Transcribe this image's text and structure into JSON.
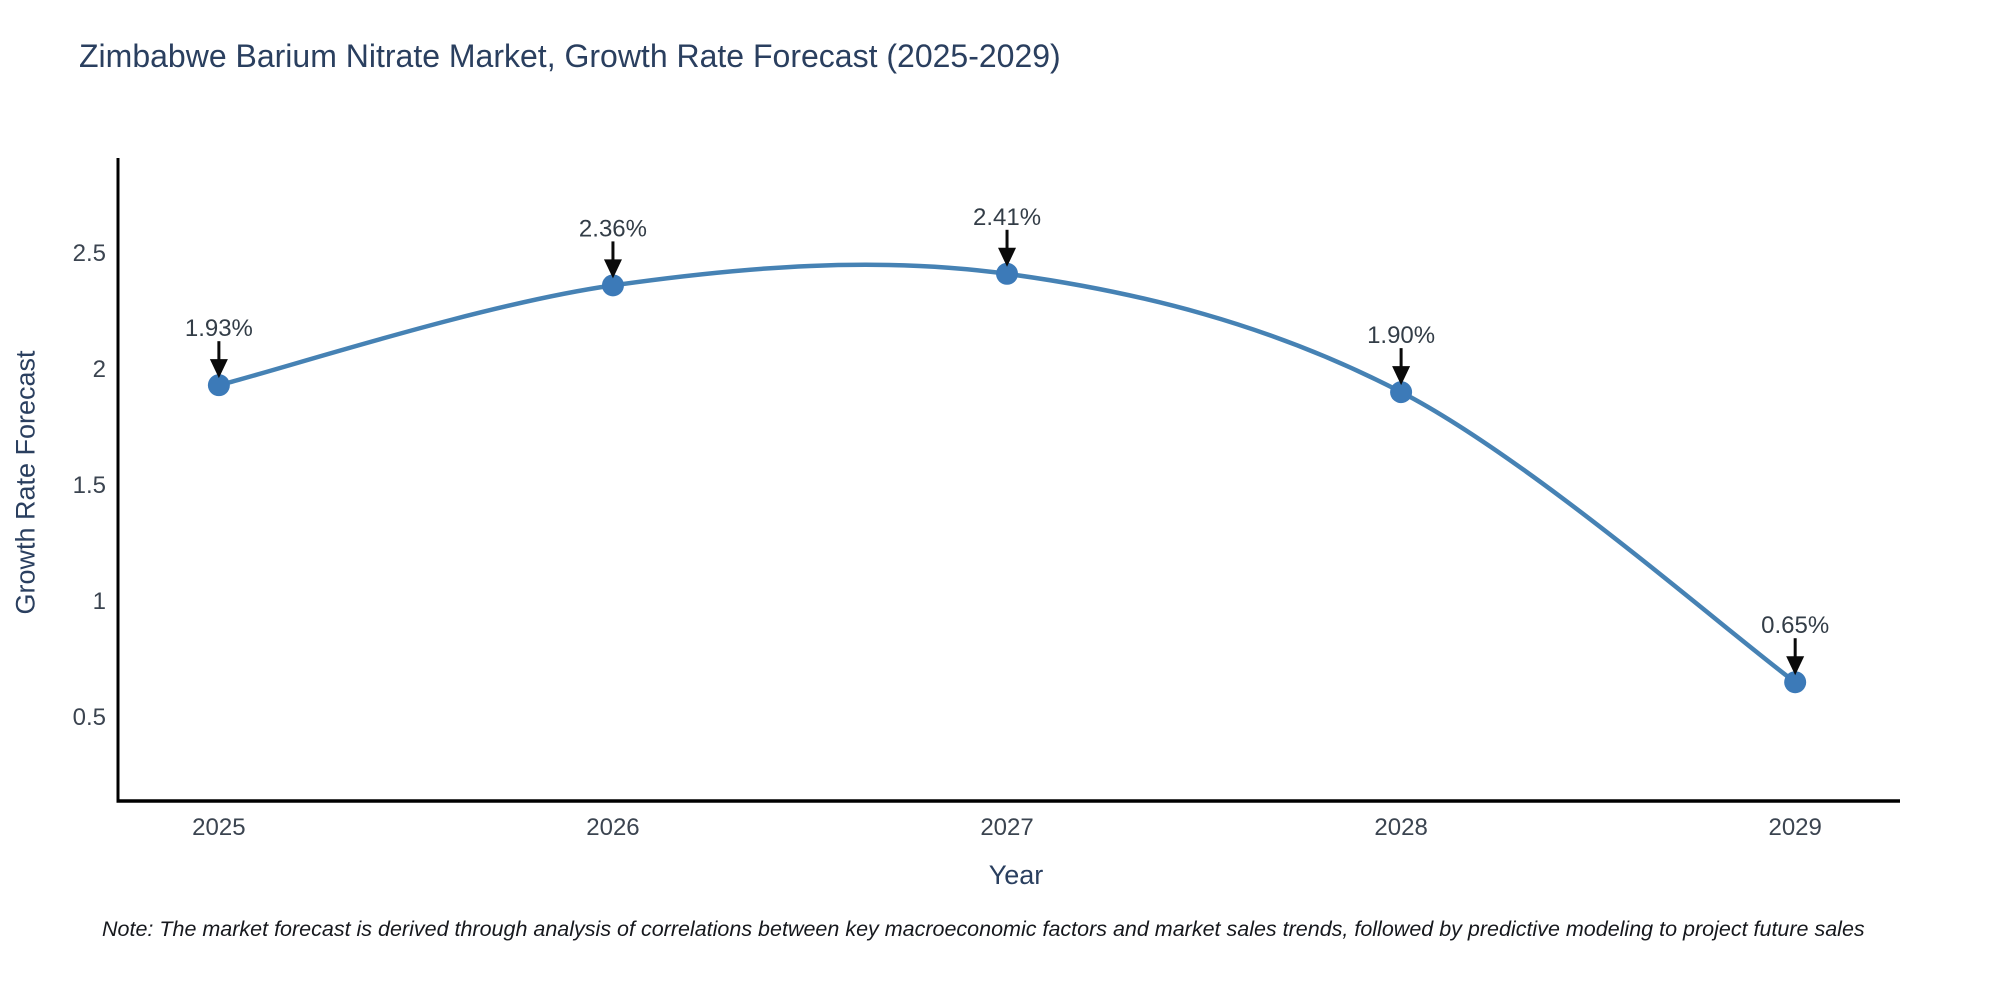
{
  "note": "Note: The market forecast is derived through analysis of correlations between key macroeconomic factors and market sales trends, followed by predictive modeling to project future sales",
  "chart_data": {
    "type": "line",
    "title": "Zimbabwe Barium Nitrate Market, Growth Rate Forecast (2025-2029)",
    "xlabel": "Year",
    "ylabel": "Growth Rate Forecast",
    "x": [
      2025,
      2026,
      2027,
      2028,
      2029
    ],
    "values": [
      1.93,
      2.36,
      2.41,
      1.9,
      0.65
    ],
    "point_labels": [
      "1.93%",
      "2.36%",
      "2.41%",
      "1.90%",
      "0.65%"
    ],
    "xtick_labels": [
      "2025",
      "2026",
      "2027",
      "2028",
      "2029"
    ],
    "yticks": [
      0.5,
      1,
      1.5,
      2,
      2.5
    ],
    "ytick_labels": [
      "0.5",
      "1",
      "1.5",
      "2",
      "2.5"
    ],
    "xlim": [
      2024.744,
      2029.266
    ],
    "ylim": [
      0.138,
      2.909
    ],
    "grid": false,
    "legend": "none",
    "smooth_spline": true,
    "line_color": "#4682b4",
    "marker_color": "#3c7ab8",
    "arrow_color": "#0a0a0a",
    "axis_color": "#000000",
    "title_color": "#2a3f5f",
    "tick_color": "#3b4450",
    "annotation_color": "#333d47"
  }
}
